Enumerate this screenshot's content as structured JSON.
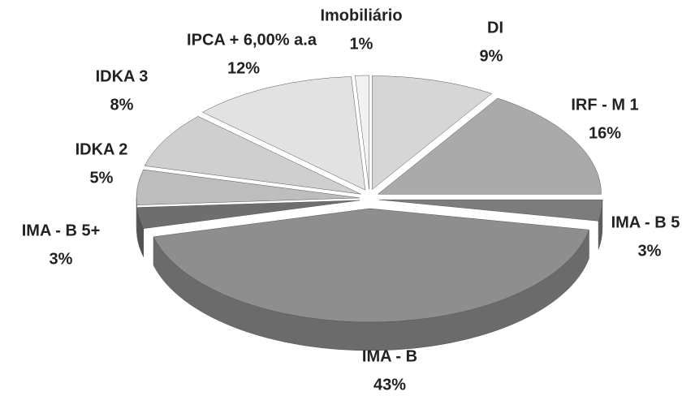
{
  "chart_data": {
    "type": "pie",
    "categories": [
      "DI",
      "IRF - M 1",
      "IMA - B 5",
      "IMA - B",
      "IMA - B 5+",
      "IDKA 2",
      "IDKA 3",
      "IPCA + 6,00% a.a",
      "Imobiliário"
    ],
    "values": [
      9,
      16,
      3,
      43,
      3,
      5,
      8,
      12,
      1
    ],
    "value_labels": [
      "9%",
      "16%",
      "3%",
      "43%",
      "3%",
      "5%",
      "8%",
      "12%",
      "1%"
    ],
    "colors": [
      "#d6d6d6",
      "#aaaaaa",
      "#7c7c7c",
      "#8e8e8e",
      "#6e6e6e",
      "#bdbdbd",
      "#cfcfcf",
      "#e2e2e2",
      "#f2f2f2"
    ]
  }
}
